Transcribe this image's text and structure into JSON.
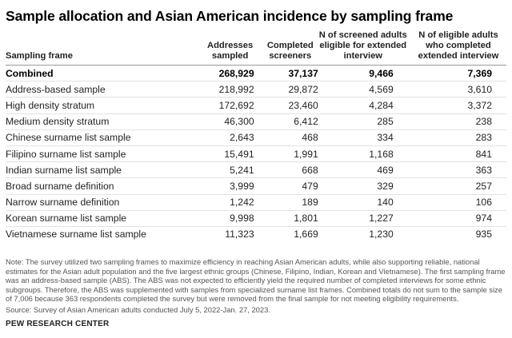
{
  "title": "Sample allocation and Asian American incidence by sampling frame",
  "table": {
    "headers": [
      "Sampling frame",
      "Addresses sampled",
      "Completed screeners",
      "N of screened adults eligible for extended interview",
      "N of eligible adults who completed extended interview"
    ],
    "rows": [
      [
        "Combined",
        "268,929",
        "37,137",
        "9,466",
        "7,369"
      ],
      [
        "Address-based sample",
        "218,992",
        "29,872",
        "4,569",
        "3,610"
      ],
      [
        "High density stratum",
        "172,692",
        "23,460",
        "4,284",
        "3,372"
      ],
      [
        "Medium density stratum",
        "46,300",
        "6,412",
        "285",
        "238"
      ],
      [
        "Chinese surname list sample",
        "2,643",
        "468",
        "334",
        "283"
      ],
      [
        "Filipino surname list sample",
        "15,491",
        "1,991",
        "1,168",
        "841"
      ],
      [
        "Indian surname list sample",
        "5,241",
        "668",
        "469",
        "363"
      ],
      [
        "Broad surname definition",
        "3,999",
        "479",
        "329",
        "257"
      ],
      [
        "Narrow surname definition",
        "1,242",
        "189",
        "140",
        "106"
      ],
      [
        "Korean surname list sample",
        "9,998",
        "1,801",
        "1,227",
        "974"
      ],
      [
        "Vietnamese surname list sample",
        "11,323",
        "1,669",
        "1,230",
        "935"
      ]
    ]
  },
  "note": "Note: The survey utilized two sampling frames to maximize efficiency in reaching Asian American adults, while also supporting reliable, national estimates for the Asian adult population and the five largest ethnic groups (Chinese, Filipino, Indian, Korean and Vietnamese). The first sampling frame was an address-based sample (ABS). The ABS was not expected to efficiently yield the required number of completed interviews for some ethnic subgroups. Therefore, the ABS was supplemented with samples from specialized surname list frames. Combined totals do not sum to the sample size of 7,006 because 363 respondents completed the survey but were removed from the final sample for not meeting eligibility requirements.",
  "source": "Source: Survey of Asian American adults conducted July 5, 2022-Jan. 27, 2023.",
  "brand": "PEW RESEARCH CENTER"
}
